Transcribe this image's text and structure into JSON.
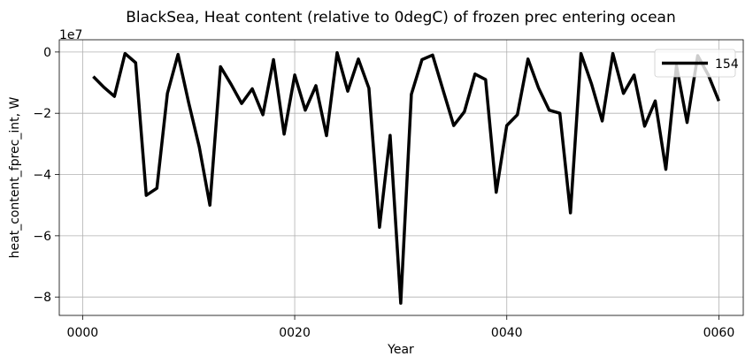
{
  "chart_data": {
    "type": "line",
    "title": "BlackSea, Heat content (relative to 0degC) of frozen prec entering ocean",
    "xlabel": "Year",
    "ylabel": "heat_content_fprec_int, W",
    "y_offset_text": "1e7",
    "xlim": [
      -2.2,
      62.3
    ],
    "ylim": [
      -86000000,
      4000000
    ],
    "x_ticks": [
      {
        "value": 0,
        "label": "0000"
      },
      {
        "value": 20,
        "label": "0020"
      },
      {
        "value": 40,
        "label": "0040"
      },
      {
        "value": 60,
        "label": "0060"
      }
    ],
    "y_ticks": [
      {
        "value": 0,
        "label": "0"
      },
      {
        "value": -20000000,
        "label": "−2"
      },
      {
        "value": -40000000,
        "label": "−4"
      },
      {
        "value": -60000000,
        "label": "−6"
      },
      {
        "value": -80000000,
        "label": "−8"
      }
    ],
    "grid": true,
    "legend_position": "top-right",
    "series": [
      {
        "name": "154",
        "color": "#000000",
        "x": [
          1,
          2,
          3,
          4,
          5,
          6,
          7,
          8,
          9,
          10,
          11,
          12,
          13,
          14,
          15,
          16,
          17,
          18,
          19,
          20,
          21,
          22,
          23,
          24,
          25,
          26,
          27,
          28,
          29,
          30,
          31,
          32,
          33,
          34,
          35,
          36,
          37,
          38,
          39,
          40,
          41,
          42,
          43,
          44,
          45,
          46,
          47,
          48,
          49,
          50,
          51,
          52,
          53,
          54,
          55,
          56,
          57,
          58,
          59,
          60
        ],
        "y": [
          -8000000,
          -11500000,
          -14500000,
          -500000,
          -3500000,
          -46800000,
          -44500000,
          -13500000,
          -800000,
          -16500000,
          -31000000,
          -50000000,
          -4800000,
          -10500000,
          -16800000,
          -12000000,
          -20500000,
          -2500000,
          -26800000,
          -7500000,
          -19000000,
          -11000000,
          -27300000,
          -200000,
          -12800000,
          -2300000,
          -11800000,
          -57200000,
          -27200000,
          -82000000,
          -13800000,
          -2500000,
          -1000000,
          -12500000,
          -24000000,
          -19500000,
          -7200000,
          -9000000,
          -45800000,
          -24000000,
          -20500000,
          -2300000,
          -11800000,
          -19000000,
          -20000000,
          -52500000,
          -500000,
          -10500000,
          -22500000,
          -500000,
          -13500000,
          -7500000,
          -24200000,
          -16000000,
          -38300000,
          -4500000,
          -23000000,
          -1200000,
          -7500000,
          -16000000
        ]
      }
    ]
  }
}
